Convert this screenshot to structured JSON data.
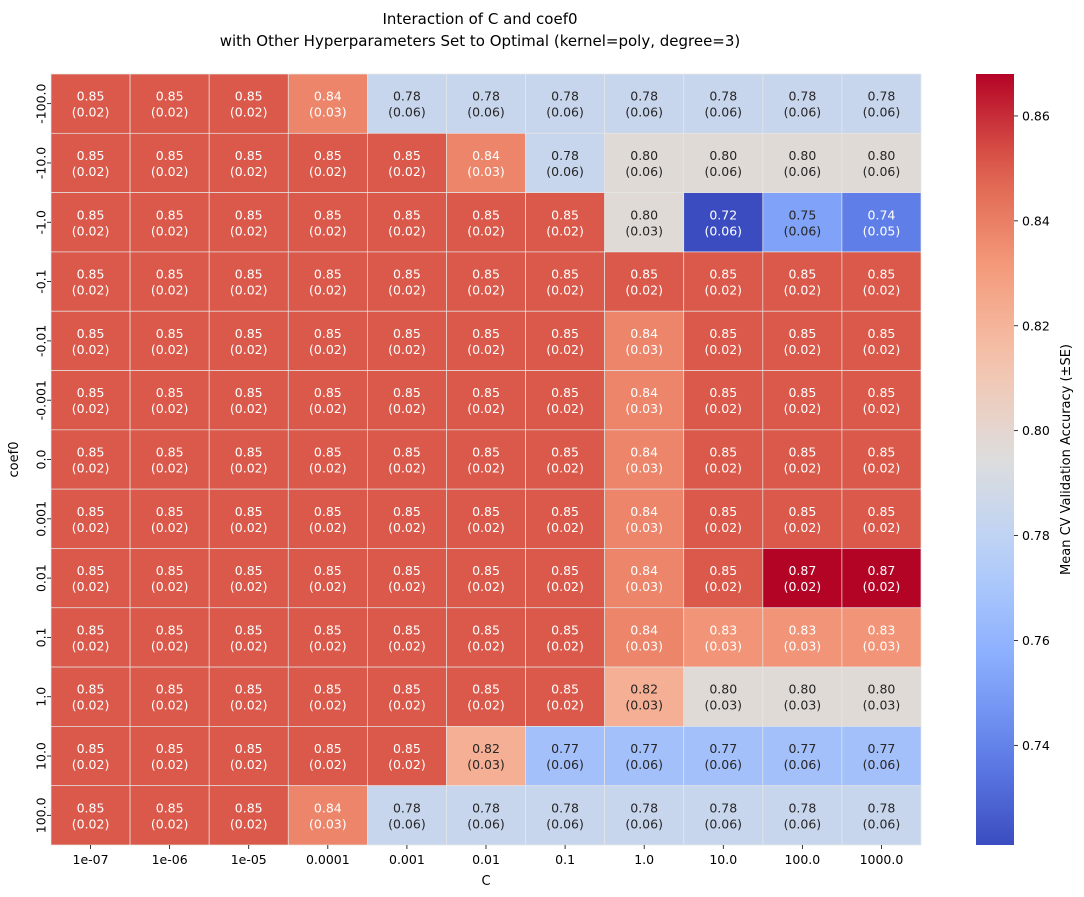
{
  "chart_data": {
    "type": "heatmap",
    "title_lines": [
      "Interaction of C and coef0",
      "with Other Hyperparameters Set to Optimal (kernel=poly, degree=3)"
    ],
    "xlabel": "C",
    "ylabel": "coef0",
    "x_categories": [
      "1e-07",
      "1e-06",
      "1e-05",
      "0.0001",
      "0.001",
      "0.01",
      "0.1",
      "1.0",
      "10.0",
      "100.0",
      "1000.0"
    ],
    "y_categories": [
      "-100.0",
      "-10.0",
      "-1.0",
      "-0.1",
      "-0.01",
      "-0.001",
      "0.0",
      "0.001",
      "0.01",
      "0.1",
      "1.0",
      "10.0",
      "100.0"
    ],
    "colormap": "coolwarm",
    "color_range": [
      0.721,
      0.868
    ],
    "values": [
      [
        0.85,
        0.85,
        0.85,
        0.84,
        0.78,
        0.78,
        0.78,
        0.78,
        0.78,
        0.78,
        0.78
      ],
      [
        0.85,
        0.85,
        0.85,
        0.85,
        0.85,
        0.84,
        0.78,
        0.8,
        0.8,
        0.8,
        0.8
      ],
      [
        0.85,
        0.85,
        0.85,
        0.85,
        0.85,
        0.85,
        0.85,
        0.8,
        0.72,
        0.75,
        0.74
      ],
      [
        0.85,
        0.85,
        0.85,
        0.85,
        0.85,
        0.85,
        0.85,
        0.85,
        0.85,
        0.85,
        0.85
      ],
      [
        0.85,
        0.85,
        0.85,
        0.85,
        0.85,
        0.85,
        0.85,
        0.84,
        0.85,
        0.85,
        0.85
      ],
      [
        0.85,
        0.85,
        0.85,
        0.85,
        0.85,
        0.85,
        0.85,
        0.84,
        0.85,
        0.85,
        0.85
      ],
      [
        0.85,
        0.85,
        0.85,
        0.85,
        0.85,
        0.85,
        0.85,
        0.84,
        0.85,
        0.85,
        0.85
      ],
      [
        0.85,
        0.85,
        0.85,
        0.85,
        0.85,
        0.85,
        0.85,
        0.84,
        0.85,
        0.85,
        0.85
      ],
      [
        0.85,
        0.85,
        0.85,
        0.85,
        0.85,
        0.85,
        0.85,
        0.84,
        0.85,
        0.87,
        0.87
      ],
      [
        0.85,
        0.85,
        0.85,
        0.85,
        0.85,
        0.85,
        0.85,
        0.84,
        0.83,
        0.83,
        0.83
      ],
      [
        0.85,
        0.85,
        0.85,
        0.85,
        0.85,
        0.85,
        0.85,
        0.82,
        0.8,
        0.8,
        0.8
      ],
      [
        0.85,
        0.85,
        0.85,
        0.85,
        0.85,
        0.82,
        0.77,
        0.77,
        0.77,
        0.77,
        0.77
      ],
      [
        0.85,
        0.85,
        0.85,
        0.84,
        0.78,
        0.78,
        0.78,
        0.78,
        0.78,
        0.78,
        0.78
      ]
    ],
    "color_values": [
      [
        0.851,
        0.851,
        0.851,
        0.838,
        0.784,
        0.784,
        0.784,
        0.784,
        0.784,
        0.784,
        0.784
      ],
      [
        0.851,
        0.851,
        0.851,
        0.851,
        0.851,
        0.838,
        0.784,
        0.797,
        0.797,
        0.797,
        0.797
      ],
      [
        0.851,
        0.851,
        0.851,
        0.851,
        0.851,
        0.851,
        0.851,
        0.797,
        0.721,
        0.752,
        0.738
      ],
      [
        0.851,
        0.851,
        0.851,
        0.851,
        0.851,
        0.851,
        0.851,
        0.851,
        0.851,
        0.851,
        0.851
      ],
      [
        0.851,
        0.851,
        0.851,
        0.851,
        0.851,
        0.851,
        0.851,
        0.838,
        0.851,
        0.851,
        0.851
      ],
      [
        0.851,
        0.851,
        0.851,
        0.851,
        0.851,
        0.851,
        0.851,
        0.838,
        0.851,
        0.851,
        0.851
      ],
      [
        0.851,
        0.851,
        0.851,
        0.851,
        0.851,
        0.851,
        0.851,
        0.838,
        0.851,
        0.851,
        0.851
      ],
      [
        0.851,
        0.851,
        0.851,
        0.851,
        0.851,
        0.851,
        0.851,
        0.838,
        0.851,
        0.851,
        0.851
      ],
      [
        0.851,
        0.851,
        0.851,
        0.851,
        0.851,
        0.851,
        0.851,
        0.838,
        0.851,
        0.868,
        0.868
      ],
      [
        0.851,
        0.851,
        0.851,
        0.851,
        0.851,
        0.851,
        0.851,
        0.838,
        0.833,
        0.833,
        0.833
      ],
      [
        0.851,
        0.851,
        0.851,
        0.851,
        0.851,
        0.851,
        0.851,
        0.822,
        0.797,
        0.797,
        0.797
      ],
      [
        0.851,
        0.851,
        0.851,
        0.851,
        0.851,
        0.822,
        0.767,
        0.767,
        0.767,
        0.767,
        0.767
      ],
      [
        0.851,
        0.851,
        0.851,
        0.838,
        0.784,
        0.784,
        0.784,
        0.784,
        0.784,
        0.784,
        0.784
      ]
    ],
    "errors": [
      [
        "0.02",
        "0.02",
        "0.02",
        "0.03",
        "0.06",
        "0.06",
        "0.06",
        "0.06",
        "0.06",
        "0.06",
        "0.06"
      ],
      [
        "0.02",
        "0.02",
        "0.02",
        "0.02",
        "0.02",
        "0.03",
        "0.06",
        "0.06",
        "0.06",
        "0.06",
        "0.06"
      ],
      [
        "0.02",
        "0.02",
        "0.02",
        "0.02",
        "0.02",
        "0.02",
        "0.02",
        "0.03",
        "0.06",
        "0.06",
        "0.05"
      ],
      [
        "0.02",
        "0.02",
        "0.02",
        "0.02",
        "0.02",
        "0.02",
        "0.02",
        "0.02",
        "0.02",
        "0.02",
        "0.02"
      ],
      [
        "0.02",
        "0.02",
        "0.02",
        "0.02",
        "0.02",
        "0.02",
        "0.02",
        "0.03",
        "0.02",
        "0.02",
        "0.02"
      ],
      [
        "0.02",
        "0.02",
        "0.02",
        "0.02",
        "0.02",
        "0.02",
        "0.02",
        "0.03",
        "0.02",
        "0.02",
        "0.02"
      ],
      [
        "0.02",
        "0.02",
        "0.02",
        "0.02",
        "0.02",
        "0.02",
        "0.02",
        "0.03",
        "0.02",
        "0.02",
        "0.02"
      ],
      [
        "0.02",
        "0.02",
        "0.02",
        "0.02",
        "0.02",
        "0.02",
        "0.02",
        "0.03",
        "0.02",
        "0.02",
        "0.02"
      ],
      [
        "0.02",
        "0.02",
        "0.02",
        "0.02",
        "0.02",
        "0.02",
        "0.02",
        "0.03",
        "0.02",
        "0.02",
        "0.02"
      ],
      [
        "0.02",
        "0.02",
        "0.02",
        "0.02",
        "0.02",
        "0.02",
        "0.02",
        "0.03",
        "0.03",
        "0.03",
        "0.03"
      ],
      [
        "0.02",
        "0.02",
        "0.02",
        "0.02",
        "0.02",
        "0.02",
        "0.02",
        "0.03",
        "0.03",
        "0.03",
        "0.03"
      ],
      [
        "0.02",
        "0.02",
        "0.02",
        "0.02",
        "0.02",
        "0.03",
        "0.06",
        "0.06",
        "0.06",
        "0.06",
        "0.06"
      ],
      [
        "0.02",
        "0.02",
        "0.02",
        "0.03",
        "0.06",
        "0.06",
        "0.06",
        "0.06",
        "0.06",
        "0.06",
        "0.06"
      ]
    ],
    "colorbar": {
      "label": "Mean CV Validation Accuracy (±SE)",
      "ticks": [
        "0.74",
        "0.76",
        "0.78",
        "0.80",
        "0.82",
        "0.84",
        "0.86"
      ],
      "tick_values": [
        0.74,
        0.76,
        0.78,
        0.8,
        0.82,
        0.84,
        0.86
      ]
    },
    "grid": false,
    "cell_borders_color": "#e6e6e6"
  }
}
